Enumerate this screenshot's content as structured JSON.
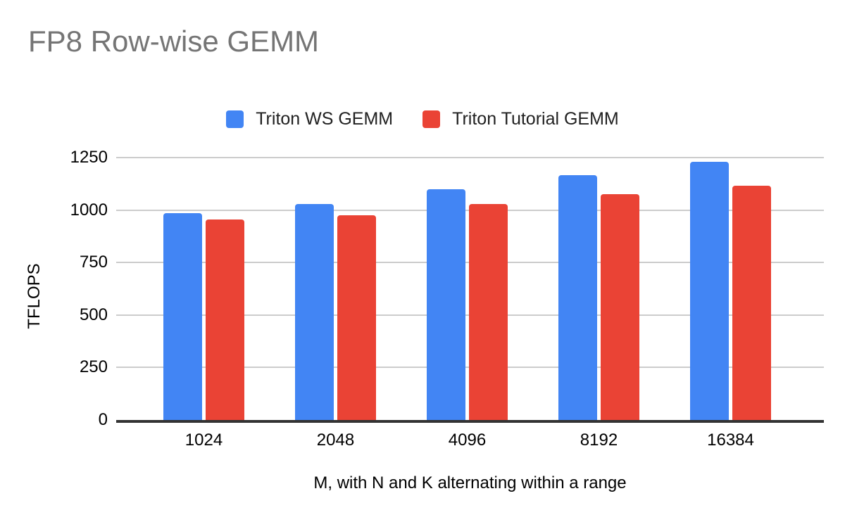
{
  "chart_data": {
    "type": "bar",
    "title": "FP8 Row-wise GEMM",
    "xlabel": "M, with N and K alternating within a range",
    "ylabel": "TFLOPS",
    "categories": [
      "1024",
      "2048",
      "4096",
      "8192",
      "16384"
    ],
    "series": [
      {
        "name": "Triton WS GEMM",
        "color": "#4285F4",
        "values": [
          985,
          1030,
          1100,
          1165,
          1230
        ]
      },
      {
        "name": "Triton Tutorial GEMM",
        "color": "#EA4335",
        "values": [
          955,
          975,
          1030,
          1075,
          1115
        ]
      }
    ],
    "ylim": [
      0,
      1250
    ],
    "yticks": [
      0,
      250,
      500,
      750,
      1000,
      1250
    ],
    "grid": "horizontal",
    "legend_position": "top-center",
    "style": {
      "title_color": "#757575",
      "text_color": "#000000",
      "legend_text_color": "#212121",
      "grid_color": "#cccccc",
      "axis_line_color": "#333333",
      "background": "#ffffff"
    }
  }
}
